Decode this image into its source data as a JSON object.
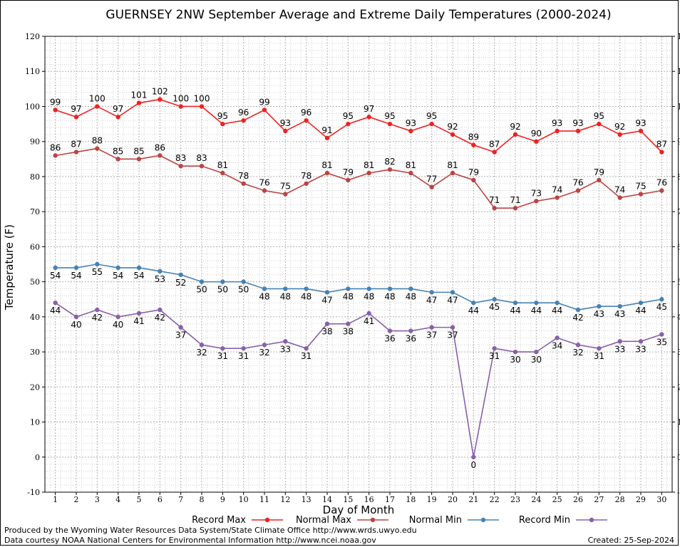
{
  "chart_data": {
    "type": "line",
    "title": "GUERNSEY 2NW September Average and Extreme Daily Temperatures (2000-2024)",
    "xlabel": "Day of Month",
    "ylabel": "Temperature (F)",
    "ylim": [
      -10,
      120
    ],
    "yticks": [
      -10,
      0,
      10,
      20,
      30,
      40,
      50,
      60,
      70,
      80,
      90,
      100,
      110,
      120
    ],
    "grid": true,
    "legend_position": "bottom",
    "x": [
      1,
      2,
      3,
      4,
      5,
      6,
      7,
      8,
      9,
      10,
      11,
      12,
      13,
      14,
      15,
      16,
      17,
      18,
      19,
      20,
      21,
      22,
      23,
      24,
      25,
      26,
      27,
      28,
      29,
      30
    ],
    "series": [
      {
        "name": "Record Max",
        "color": "#ee2222",
        "values": [
          99,
          97,
          100,
          97,
          101,
          102,
          100,
          100,
          95,
          96,
          99,
          93,
          96,
          91,
          95,
          97,
          95,
          93,
          95,
          92,
          89,
          87,
          92,
          90,
          93,
          93,
          95,
          92,
          93,
          87
        ]
      },
      {
        "name": "Normal Max",
        "color": "#bb4444",
        "values": [
          86,
          87,
          88,
          85,
          85,
          86,
          83,
          83,
          81,
          78,
          76,
          75,
          78,
          81,
          79,
          81,
          82,
          81,
          77,
          81,
          79,
          71,
          71,
          73,
          74,
          76,
          79,
          74,
          75,
          76
        ]
      },
      {
        "name": "Normal Min",
        "color": "#4682b4",
        "values": [
          54,
          54,
          55,
          54,
          54,
          53,
          52,
          50,
          50,
          50,
          48,
          48,
          48,
          47,
          48,
          48,
          48,
          48,
          47,
          47,
          44,
          45,
          44,
          44,
          44,
          42,
          43,
          43,
          44,
          45
        ]
      },
      {
        "name": "Record Min",
        "color": "#8860a8",
        "values": [
          44,
          40,
          42,
          40,
          41,
          42,
          37,
          32,
          31,
          31,
          32,
          33,
          31,
          38,
          38,
          41,
          36,
          36,
          37,
          37,
          0,
          31,
          30,
          30,
          34,
          32,
          31,
          33,
          33,
          35
        ]
      }
    ]
  },
  "footer": {
    "produced_by": "Produced by the Wyoming Water Resources Data System/State Climate Office http://www.wrds.uwyo.edu",
    "courtesy": "Data courtesy NOAA National Centers for Environmental Information http://www.ncei.noaa.gov",
    "created": "Created: 25-Sep-2024"
  }
}
